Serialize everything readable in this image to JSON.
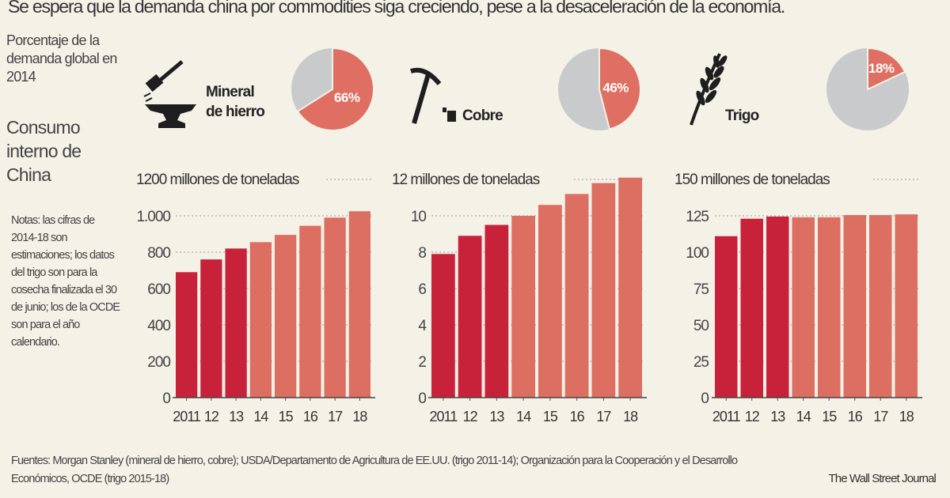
{
  "headline": "Se espera que la demanda china por commodities siga creciendo, pese a la desaceleración de la economía.",
  "pie_heading": "Porcentaje de la demanda global en 2014",
  "bar_heading": "Consumo interno de China",
  "notes": "Notas: las cifras de 2014-18 son estimaciones; los datos del trigo son para la cosecha finalizada el 30 de junio; los de la OCDE son para el año calendario.",
  "sources": "Fuentes: Morgan Stanley (mineral de hierro, cobre); USDA/Departamento de Agricultura de EE.UU. (trigo 2011-14); Organización para la Cooperación y el Desarrollo Económicos, OCDE (trigo 2015-18)",
  "credit": "The Wall Street Journal",
  "colors": {
    "actual": "#c8213a",
    "estimate": "#dd6e62",
    "pie_other": "#c9cacc",
    "pie_share": "#df6f62",
    "background": "#f4f1e7"
  },
  "commodities": [
    {
      "name_line1": "Mineral",
      "name_line2": "de hierro",
      "icon": "anvil-hammer-icon",
      "share_pct": 66,
      "share_label": "66%"
    },
    {
      "name_line1": "Cobre",
      "name_line2": "",
      "icon": "pickaxe-icon",
      "share_pct": 46,
      "share_label": "46%"
    },
    {
      "name_line1": "Trigo",
      "name_line2": "",
      "icon": "wheat-icon",
      "share_pct": 18,
      "share_label": "18%"
    }
  ],
  "chart_data": [
    {
      "type": "bar",
      "unit_label": "millones de toneladas",
      "top_label": "1200",
      "categories": [
        "2011",
        "12",
        "13",
        "14",
        "15",
        "16",
        "17",
        "18"
      ],
      "values": [
        690,
        760,
        820,
        855,
        895,
        945,
        990,
        1025
      ],
      "estimated_from": "14",
      "ylim": [
        0,
        1200
      ],
      "yticks": [
        0,
        200,
        400,
        600,
        800,
        1000
      ],
      "ytick_labels": [
        "0",
        "200",
        "400",
        "600",
        "800",
        "1.000"
      ]
    },
    {
      "type": "bar",
      "unit_label": "millones de toneladas",
      "top_label": "12",
      "categories": [
        "2011",
        "12",
        "13",
        "14",
        "15",
        "16",
        "17",
        "18"
      ],
      "values": [
        7.9,
        8.9,
        9.5,
        10.0,
        10.6,
        11.2,
        11.8,
        12.1
      ],
      "estimated_from": "14",
      "ylim": [
        0,
        12
      ],
      "yticks": [
        0,
        2,
        4,
        6,
        8,
        10
      ],
      "ytick_labels": [
        "0",
        "2",
        "4",
        "6",
        "8",
        "10"
      ]
    },
    {
      "type": "bar",
      "unit_label": "millones de toneladas",
      "top_label": "150",
      "categories": [
        "2011",
        "12",
        "13",
        "14",
        "15",
        "16",
        "17",
        "18"
      ],
      "values": [
        111,
        123,
        124.5,
        124,
        124,
        125.5,
        125.5,
        126
      ],
      "estimated_from": "14",
      "ylim": [
        0,
        150
      ],
      "yticks": [
        0,
        25,
        50,
        75,
        100,
        125
      ],
      "ytick_labels": [
        "0",
        "25",
        "50",
        "75",
        "100",
        "125"
      ]
    }
  ]
}
